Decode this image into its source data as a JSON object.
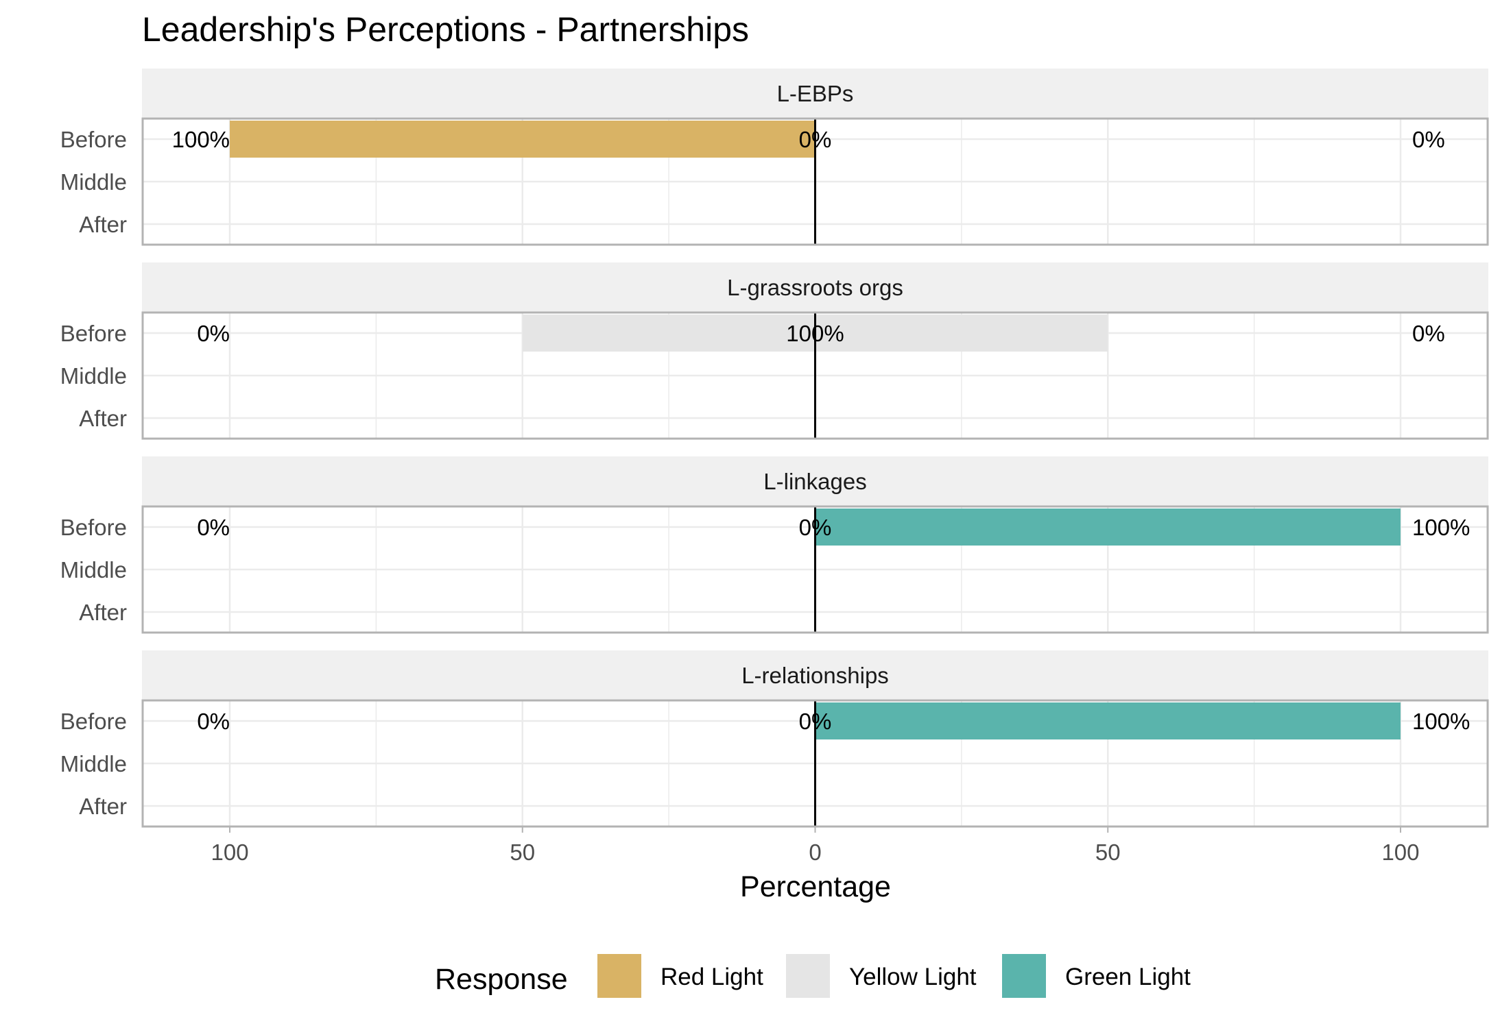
{
  "chart_data": {
    "type": "bar",
    "orientation": "horizontal-diverging",
    "title": "Leadership's Perceptions - Partnerships",
    "xlabel": "Percentage",
    "ylabel": "",
    "xlim": [
      -115,
      115
    ],
    "x_ticks": [
      -100,
      -50,
      0,
      50,
      100
    ],
    "x_tick_labels": [
      "100",
      "50",
      "0",
      "50",
      "100"
    ],
    "categories": [
      "Before",
      "Middle",
      "After"
    ],
    "grid": true,
    "legend": {
      "title": "Response",
      "position": "bottom",
      "items": [
        {
          "name": "Red Light",
          "color": "#D9B365"
        },
        {
          "name": "Yellow Light",
          "color": "#E5E5E5"
        },
        {
          "name": "Green Light",
          "color": "#5AB4AC"
        }
      ]
    },
    "panels": [
      {
        "name": "L-EBPs",
        "rows": [
          {
            "category": "Before",
            "red": 100,
            "yellow": 0,
            "green": 0,
            "labels": [
              "100%",
              "0%",
              "0%"
            ]
          },
          {
            "category": "Middle",
            "red": null,
            "yellow": null,
            "green": null,
            "labels": [
              "",
              "",
              ""
            ]
          },
          {
            "category": "After",
            "red": null,
            "yellow": null,
            "green": null,
            "labels": [
              "",
              "",
              ""
            ]
          }
        ]
      },
      {
        "name": "L-grassroots orgs",
        "rows": [
          {
            "category": "Before",
            "red": 0,
            "yellow": 100,
            "green": 0,
            "labels": [
              "0%",
              "100%",
              "0%"
            ]
          },
          {
            "category": "Middle",
            "red": null,
            "yellow": null,
            "green": null,
            "labels": [
              "",
              "",
              ""
            ]
          },
          {
            "category": "After",
            "red": null,
            "yellow": null,
            "green": null,
            "labels": [
              "",
              "",
              ""
            ]
          }
        ]
      },
      {
        "name": "L-linkages",
        "rows": [
          {
            "category": "Before",
            "red": 0,
            "yellow": 0,
            "green": 100,
            "labels": [
              "0%",
              "0%",
              "100%"
            ]
          },
          {
            "category": "Middle",
            "red": null,
            "yellow": null,
            "green": null,
            "labels": [
              "",
              "",
              ""
            ]
          },
          {
            "category": "After",
            "red": null,
            "yellow": null,
            "green": null,
            "labels": [
              "",
              "",
              ""
            ]
          }
        ]
      },
      {
        "name": "L-relationships",
        "rows": [
          {
            "category": "Before",
            "red": 0,
            "yellow": 0,
            "green": 100,
            "labels": [
              "0%",
              "0%",
              "100%"
            ]
          },
          {
            "category": "Middle",
            "red": null,
            "yellow": null,
            "green": null,
            "labels": [
              "",
              "",
              ""
            ]
          },
          {
            "category": "After",
            "red": null,
            "yellow": null,
            "green": null,
            "labels": [
              "",
              "",
              ""
            ]
          }
        ]
      }
    ]
  },
  "colors": {
    "strip_background": "#F0F0F0",
    "panel_border": "#B3B3B3",
    "grid": "#EBEBEB",
    "zero_line": "#000000"
  }
}
